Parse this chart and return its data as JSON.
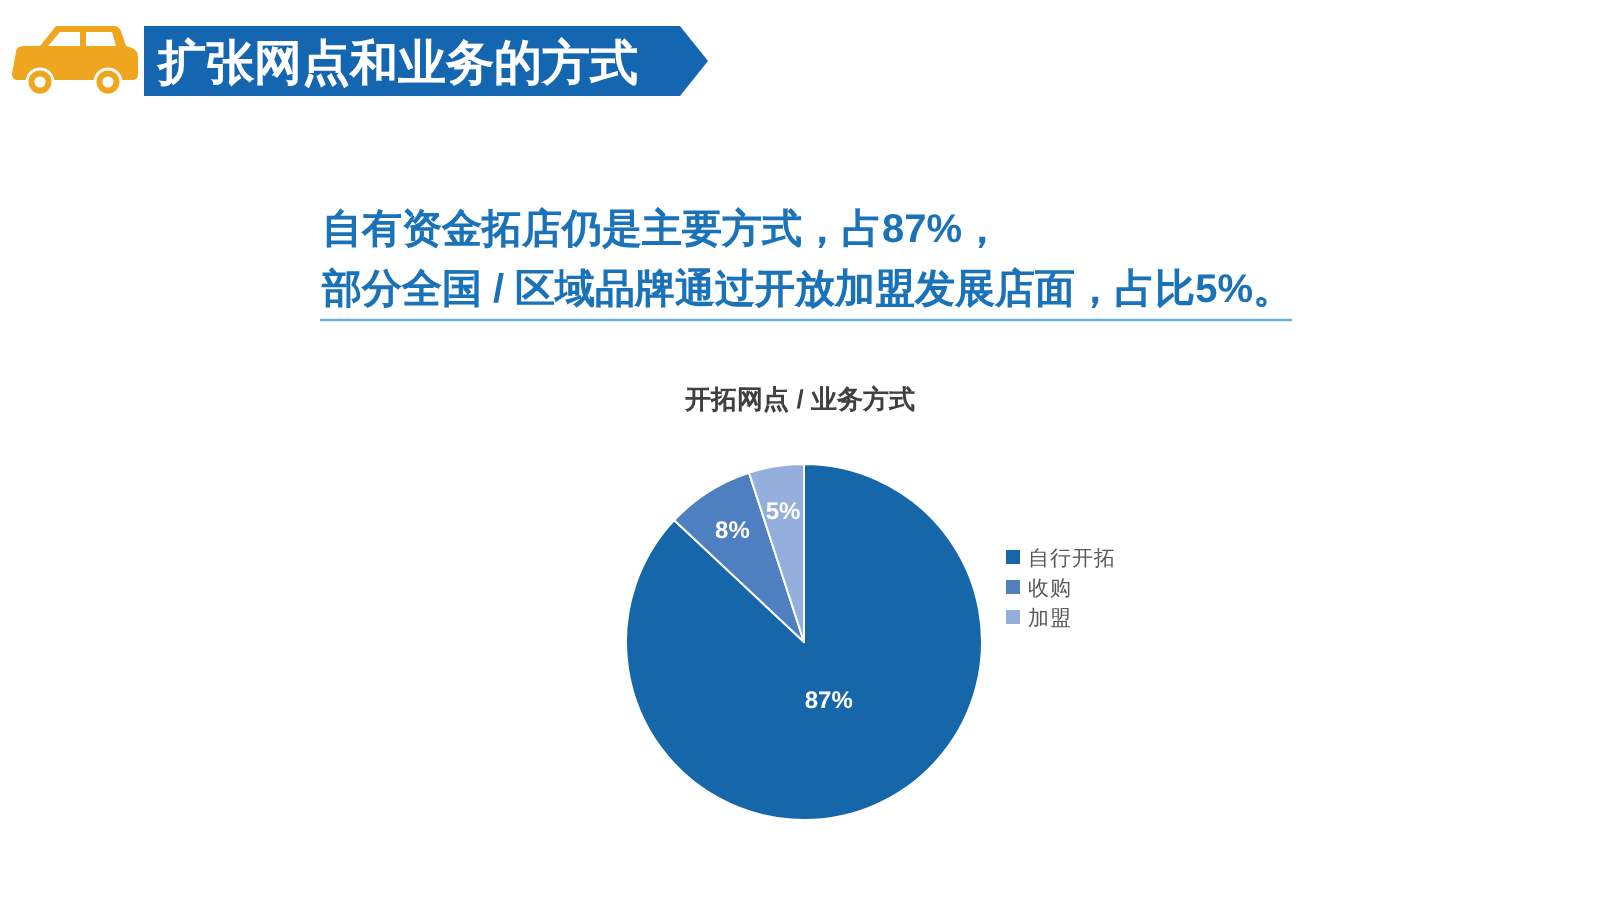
{
  "chart_data": {
    "type": "pie",
    "title": "扩张网点和业务的方式",
    "subtitle": "自有资金拓店仍是主要方式，占87%，",
    "annotations": [
      "部分全国 / 区域品牌通过开放加盟发展店面，占比5%。",
      "开拓网点 / 业务方式"
    ],
    "categories": [
      "自行开拓",
      "收购",
      "加盟"
    ],
    "values": [
      87,
      8,
      5
    ],
    "colors": [
      "#1567a9",
      "#4e7fc0",
      "#94afdb"
    ],
    "value_labels": [
      "87%",
      "8%",
      "5%"
    ],
    "legend": "right"
  }
}
